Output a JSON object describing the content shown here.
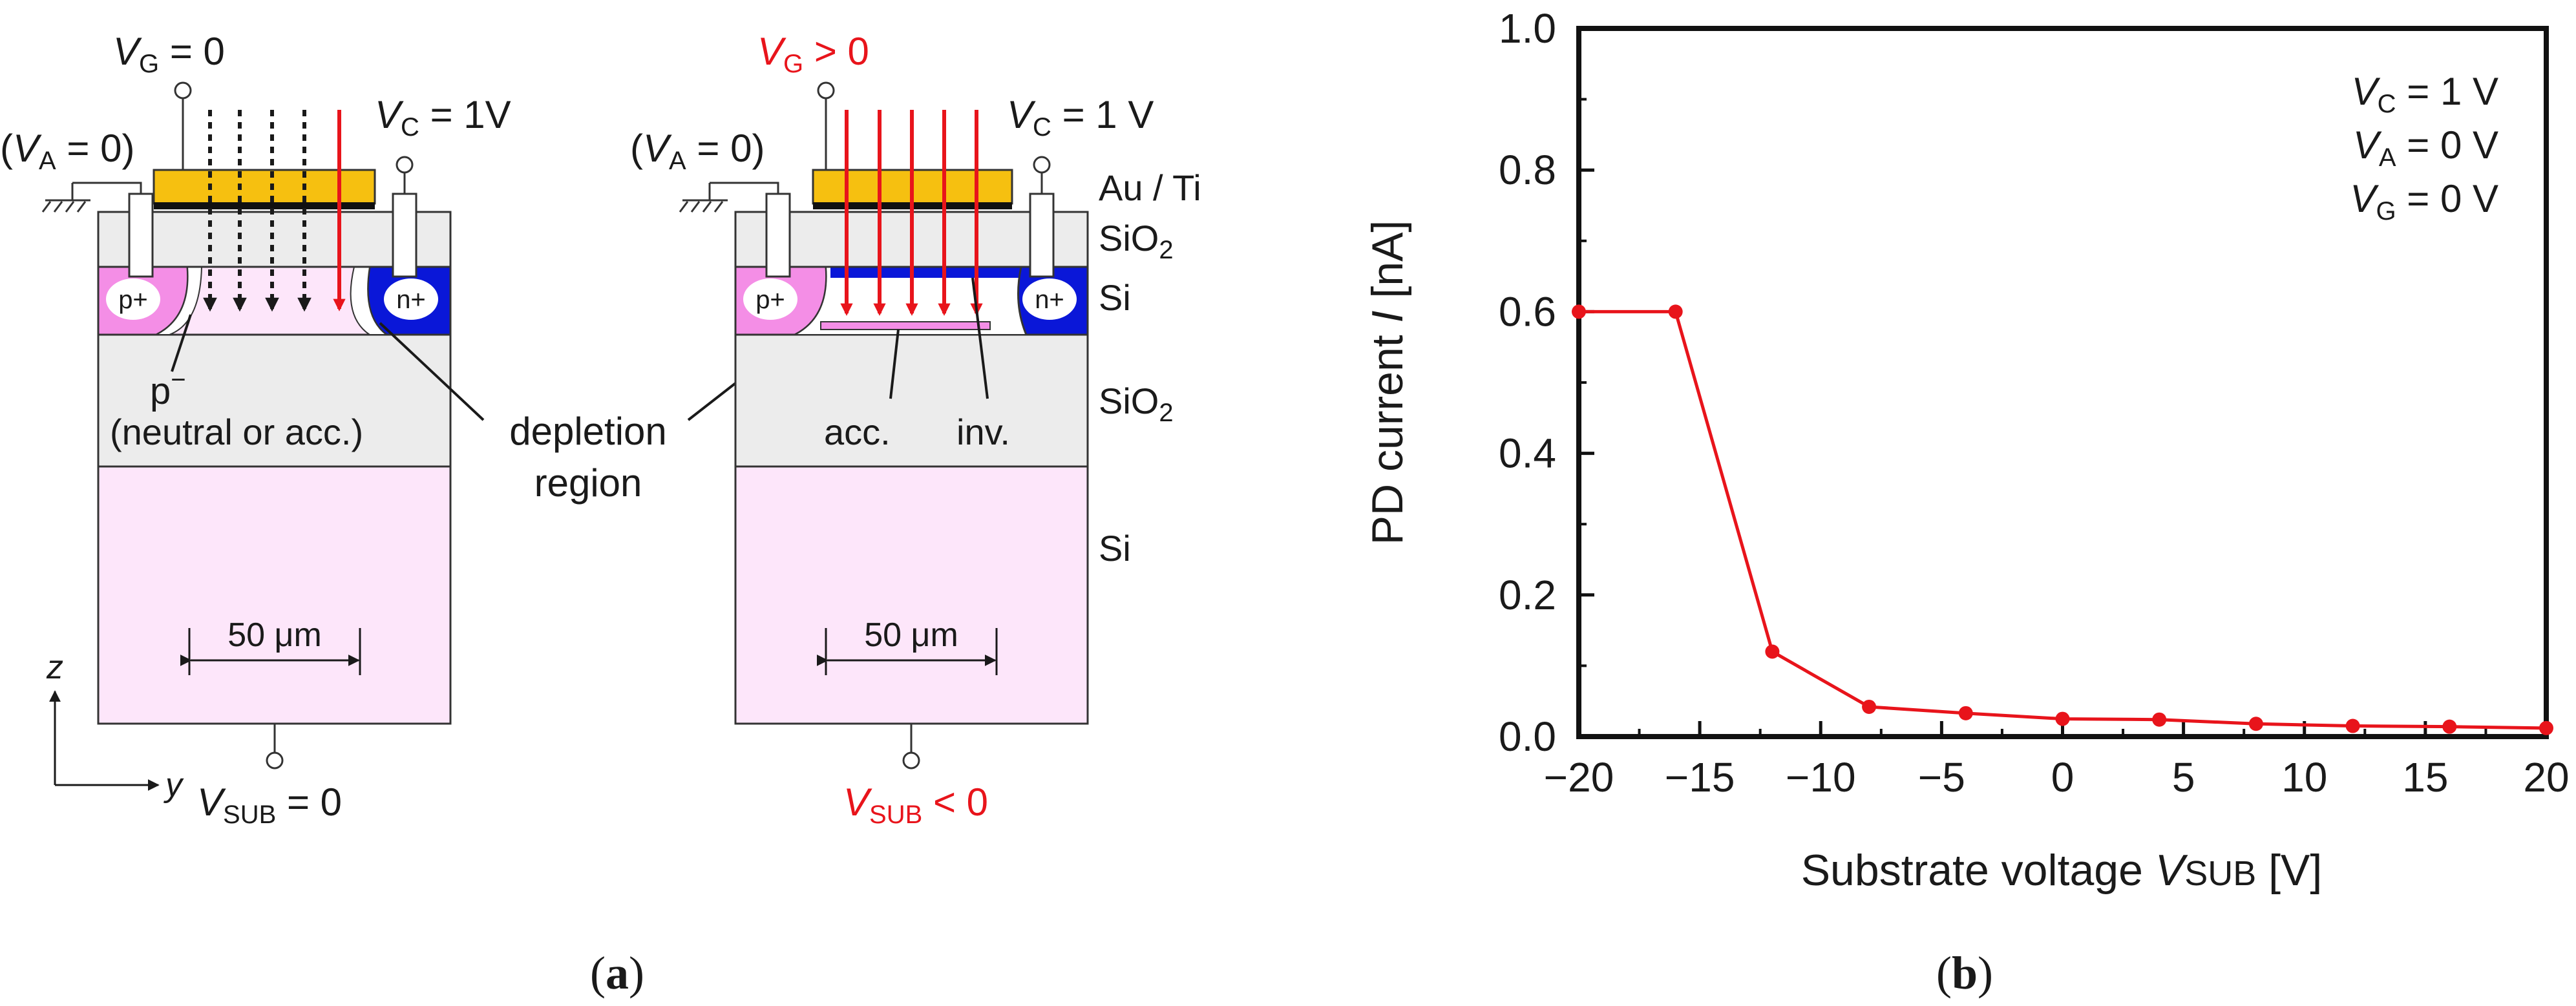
{
  "colors": {
    "red": "#e8141b",
    "pink_light": "#fde6fa",
    "pink_mid": "#f48ee6",
    "blue": "#0a17d8",
    "gold": "#f6c010",
    "grey": "#ececec"
  },
  "panel_a": {
    "caption": "a",
    "left": {
      "vg": {
        "v": "V",
        "sub": "G",
        "rest": " = 0"
      },
      "vc": {
        "v": "V",
        "sub": "C",
        "rest": " = 1V"
      },
      "va": {
        "open": "(",
        "v": "V",
        "sub": "A",
        "rest": " = 0)"
      },
      "p_plus": "p+",
      "n_plus": "n+",
      "p_minus": {
        "p": "p",
        "sup": "−"
      },
      "neutral": "(neutral or acc.)",
      "dimension": "50 μm",
      "axis_z": "z",
      "axis_y": "y",
      "vsub": {
        "v": "V",
        "sub": "SUB",
        "rest": " = 0"
      }
    },
    "depletion": [
      "depletion",
      "region"
    ],
    "right": {
      "vg": {
        "v": "V",
        "sub": "G",
        "rest": " > 0"
      },
      "vc": {
        "v": "V",
        "sub": "C",
        "rest": " = 1 V"
      },
      "va": {
        "open": "(",
        "v": "V",
        "sub": "A",
        "rest": " = 0)"
      },
      "p_plus": "p+",
      "n_plus": "n+",
      "acc": "acc.",
      "inv": "inv.",
      "dimension": "50 μm",
      "vsub": {
        "v": "V",
        "sub": "SUB",
        "rest": " < 0"
      }
    },
    "layers": {
      "metal": "Au / Ti",
      "oxide_top": {
        "t": "SiO",
        "sub": "2"
      },
      "si_top": "Si",
      "oxide_box": {
        "t": "SiO",
        "sub": "2"
      },
      "si_sub": "Si"
    }
  },
  "panel_b": {
    "caption": "b",
    "chart_data": {
      "type": "line",
      "title": "",
      "xlabel": {
        "text": "Substrate voltage ",
        "v": "V",
        "sub": "SUB",
        "unit": " [V]"
      },
      "ylabel": {
        "text": "PD current ",
        "var": "I",
        "unit": " [nA]"
      },
      "xlim": [
        -20,
        20
      ],
      "ylim": [
        0.0,
        1.0
      ],
      "x_ticks": [
        -20,
        -15,
        -10,
        -5,
        0,
        5,
        10,
        15,
        20
      ],
      "x_tick_labels": [
        "−20",
        "−15",
        "−10",
        "−5",
        "0",
        "5",
        "10",
        "15",
        "20"
      ],
      "y_ticks": [
        0.0,
        0.2,
        0.4,
        0.6,
        0.8,
        1.0
      ],
      "y_tick_labels": [
        "0.0",
        "0.2",
        "0.4",
        "0.6",
        "0.8",
        "1.0"
      ],
      "x_minor_ticks": [
        -17.5,
        -12.5,
        -7.5,
        -2.5,
        2.5,
        7.5,
        12.5,
        17.5
      ],
      "y_minor_ticks": [
        0.1,
        0.3,
        0.5,
        0.7,
        0.9
      ],
      "series": [
        {
          "name": "PD current",
          "color": "#e8141b",
          "x": [
            -20,
            -16,
            -12,
            -8,
            -4,
            0,
            4,
            8,
            12,
            16,
            20
          ],
          "y": [
            0.6,
            0.6,
            0.12,
            0.042,
            0.033,
            0.025,
            0.024,
            0.018,
            0.015,
            0.014,
            0.012
          ]
        }
      ],
      "annotations": [
        {
          "v": "V",
          "sub": "C",
          "rest": " = 1 V"
        },
        {
          "v": "V",
          "sub": "A",
          "rest": " = 0 V"
        },
        {
          "v": "V",
          "sub": "G",
          "rest": " = 0 V"
        }
      ]
    }
  }
}
